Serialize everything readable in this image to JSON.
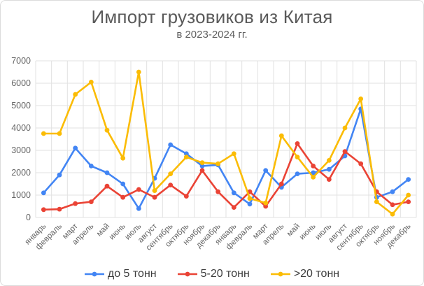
{
  "chart_data": {
    "type": "line",
    "title": "Импорт грузовиков из Китая",
    "subtitle": "в 2023-2024 гг.",
    "categories": [
      "январь",
      "февраль",
      "март",
      "апрель",
      "май",
      "июнь",
      "июль",
      "август",
      "сентябрь",
      "октябрь",
      "ноябрь",
      "декабрь",
      "январь",
      "февраль",
      "март",
      "апрель",
      "май",
      "июнь",
      "июль",
      "август",
      "сентябрь",
      "октябрь",
      "ноябрь",
      "декабрь"
    ],
    "series": [
      {
        "name": "до 5 тонн",
        "color": "#4285F4",
        "values": [
          1100,
          1900,
          3100,
          2300,
          2000,
          1500,
          400,
          1750,
          3250,
          2850,
          2300,
          2350,
          1100,
          600,
          2100,
          1350,
          1950,
          2000,
          2150,
          2750,
          4850,
          900,
          1150,
          1700
        ]
      },
      {
        "name": "5-20 тонн",
        "color": "#EA4335",
        "values": [
          350,
          370,
          620,
          700,
          1400,
          900,
          1250,
          900,
          1450,
          950,
          2100,
          1150,
          450,
          1150,
          500,
          1500,
          3300,
          2300,
          1700,
          2950,
          2400,
          1150,
          570,
          700
        ]
      },
      {
        "name": ">20 тонн",
        "color": "#FBBC04",
        "values": [
          3750,
          3750,
          5500,
          6050,
          3900,
          2650,
          6500,
          1200,
          1950,
          2700,
          2450,
          2400,
          2850,
          850,
          650,
          3650,
          2700,
          1800,
          2550,
          4000,
          5300,
          700,
          150,
          1000
        ]
      }
    ],
    "ylim": [
      0,
      7000
    ],
    "ytick_step": 1000,
    "yticks": [
      0,
      1000,
      2000,
      3000,
      4000,
      5000,
      6000,
      7000
    ],
    "grid": true,
    "legend_position": "bottom",
    "gridline_color": "#e2e2e2",
    "axis_label_color": "#666666",
    "title_color": "#5a5a5a"
  }
}
